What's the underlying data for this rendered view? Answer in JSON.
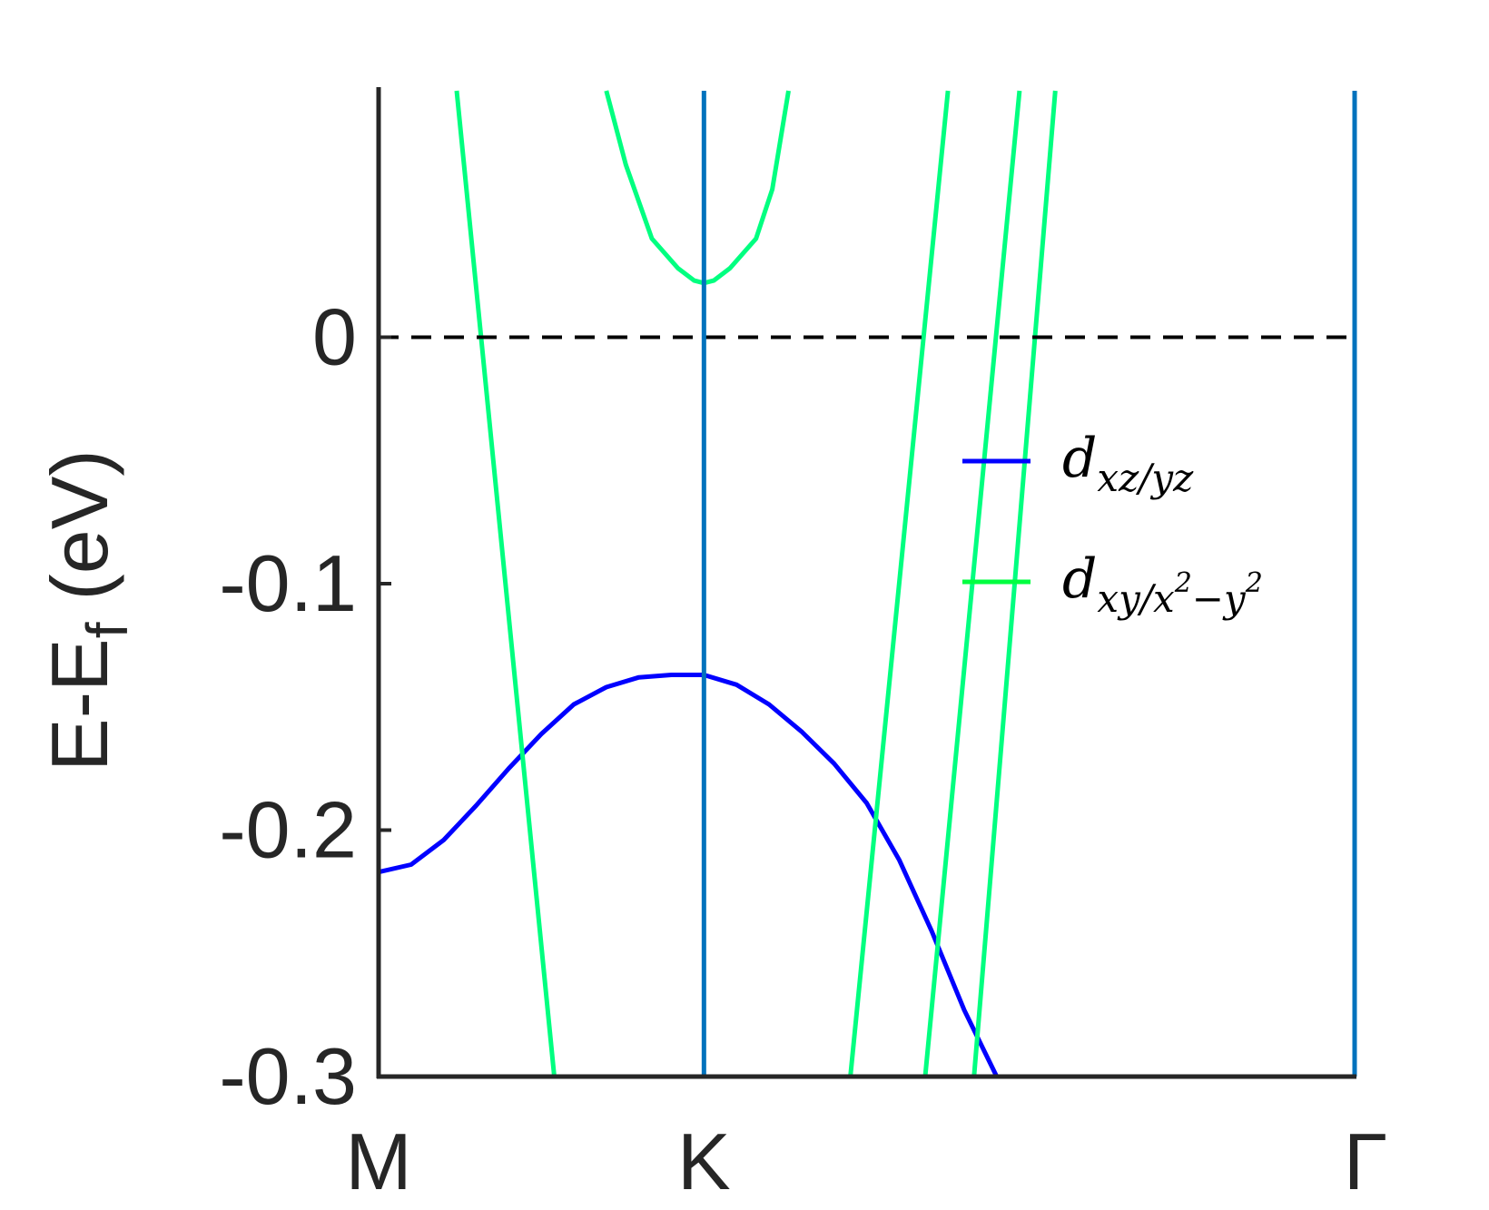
{
  "chart_data": {
    "type": "line",
    "ylabel_main": "E-E",
    "ylabel_sub": "f",
    "ylabel_unit": "(eV)",
    "ylim": [
      -0.3,
      0.1
    ],
    "yticks": [
      {
        "value": 0,
        "label": "0"
      },
      {
        "value": -0.1,
        "label": "-0.1"
      },
      {
        "value": -0.2,
        "label": "-0.2"
      },
      {
        "value": -0.3,
        "label": "-0.3"
      }
    ],
    "xlim": [
      0,
      3
    ],
    "xticks": [
      {
        "value": 0,
        "label": "M"
      },
      {
        "value": 1,
        "label": "K"
      },
      {
        "value": 3,
        "label": "Γ"
      }
    ],
    "reference_lines": [
      {
        "type": "horizontal",
        "value": 0,
        "style": "dashed",
        "color": "#000000"
      },
      {
        "type": "vertical",
        "value": 1,
        "color": "#0072bd"
      },
      {
        "type": "vertical",
        "value": 3,
        "color": "#0072bd"
      }
    ],
    "legend": {
      "placement": "right",
      "entries": [
        {
          "base": "d",
          "sub": "xz/yz",
          "color": "#0000ff"
        },
        {
          "base": "d",
          "sub": "xy/x",
          "sup1": "2",
          "sub2": "−y",
          "sup2": "2",
          "color": "#00ff40"
        }
      ]
    },
    "series": [
      {
        "color": "#0000ff",
        "points": [
          [
            0,
            -0.217
          ],
          [
            0.1,
            -0.214
          ],
          [
            0.2,
            -0.204
          ],
          [
            0.3,
            -0.19
          ],
          [
            0.4,
            -0.175
          ],
          [
            0.5,
            -0.161
          ],
          [
            0.6,
            -0.149
          ],
          [
            0.7,
            -0.142
          ],
          [
            0.8,
            -0.138
          ],
          [
            0.9,
            -0.137
          ],
          [
            1.0,
            -0.137
          ],
          [
            1.1,
            -0.141
          ],
          [
            1.2,
            -0.149
          ],
          [
            1.3,
            -0.16
          ],
          [
            1.4,
            -0.173
          ],
          [
            1.5,
            -0.189
          ],
          [
            1.6,
            -0.212
          ],
          [
            1.7,
            -0.241
          ],
          [
            1.8,
            -0.273
          ],
          [
            1.9,
            -0.3
          ]
        ]
      },
      {
        "color": "#00ff80",
        "points": [
          [
            0.24,
            0.1
          ],
          [
            0.54,
            -0.3
          ]
        ]
      },
      {
        "color": "#00ff80",
        "points": [
          [
            0.7,
            0.1
          ],
          [
            0.76,
            0.07
          ],
          [
            0.84,
            0.04
          ],
          [
            0.92,
            0.028
          ],
          [
            0.97,
            0.023
          ],
          [
            1.0,
            0.022
          ],
          [
            1.03,
            0.023
          ],
          [
            1.08,
            0.028
          ],
          [
            1.16,
            0.04
          ],
          [
            1.21,
            0.06
          ],
          [
            1.26,
            0.1
          ]
        ]
      },
      {
        "color": "#00ff80",
        "points": [
          [
            1.75,
            0.1
          ],
          [
            1.45,
            -0.3
          ]
        ]
      },
      {
        "color": "#00ff80",
        "points": [
          [
            1.97,
            0.1
          ],
          [
            1.68,
            -0.3
          ]
        ]
      },
      {
        "color": "#00ff80",
        "points": [
          [
            2.08,
            0.1
          ],
          [
            1.83,
            -0.3
          ]
        ]
      }
    ]
  }
}
